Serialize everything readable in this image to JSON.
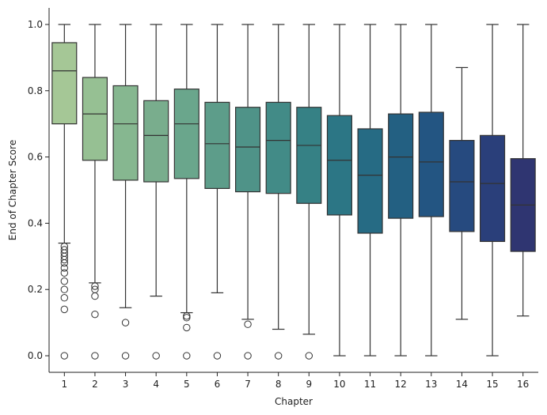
{
  "chart_data": {
    "type": "box",
    "title": "",
    "xlabel": "Chapter",
    "ylabel": "End of Chapter Score",
    "ylim": [
      -0.05,
      1.05
    ],
    "yticks": [
      0.0,
      0.2,
      0.4,
      0.6,
      0.8,
      1.0
    ],
    "ytick_labels": [
      "0.0",
      "0.2",
      "0.4",
      "0.6",
      "0.8",
      "1.0"
    ],
    "grid": false,
    "categories": [
      "1",
      "2",
      "3",
      "4",
      "5",
      "6",
      "7",
      "8",
      "9",
      "10",
      "11",
      "12",
      "13",
      "14",
      "15",
      "16"
    ],
    "colors": [
      "#a5c796",
      "#96c093",
      "#86b790",
      "#79ad8d",
      "#6aa68c",
      "#5d9d8a",
      "#4f9388",
      "#428b87",
      "#368185",
      "#2c7685",
      "#266b84",
      "#236082",
      "#235582",
      "#264a7f",
      "#2a3f7a",
      "#2f3571"
    ],
    "boxes": [
      {
        "q1": 0.7,
        "median": 0.86,
        "q3": 0.945,
        "whisker_low": 0.34,
        "whisker_high": 1.0,
        "outliers": [
          0.33,
          0.32,
          0.31,
          0.3,
          0.29,
          0.28,
          0.265,
          0.25,
          0.225,
          0.2,
          0.175,
          0.14,
          0.0
        ]
      },
      {
        "q1": 0.59,
        "median": 0.73,
        "q3": 0.84,
        "whisker_low": 0.22,
        "whisker_high": 1.0,
        "outliers": [
          0.21,
          0.2,
          0.18,
          0.125,
          0.0
        ]
      },
      {
        "q1": 0.53,
        "median": 0.7,
        "q3": 0.815,
        "whisker_low": 0.145,
        "whisker_high": 1.0,
        "outliers": [
          0.1,
          0.0
        ]
      },
      {
        "q1": 0.525,
        "median": 0.665,
        "q3": 0.77,
        "whisker_low": 0.18,
        "whisker_high": 1.0,
        "outliers": [
          0.0
        ]
      },
      {
        "q1": 0.535,
        "median": 0.7,
        "q3": 0.805,
        "whisker_low": 0.13,
        "whisker_high": 1.0,
        "outliers": [
          0.12,
          0.115,
          0.085,
          0.0
        ]
      },
      {
        "q1": 0.505,
        "median": 0.64,
        "q3": 0.765,
        "whisker_low": 0.19,
        "whisker_high": 1.0,
        "outliers": [
          0.0
        ]
      },
      {
        "q1": 0.495,
        "median": 0.63,
        "q3": 0.75,
        "whisker_low": 0.11,
        "whisker_high": 1.0,
        "outliers": [
          0.095,
          0.0
        ]
      },
      {
        "q1": 0.49,
        "median": 0.65,
        "q3": 0.765,
        "whisker_low": 0.08,
        "whisker_high": 1.0,
        "outliers": [
          0.0
        ]
      },
      {
        "q1": 0.46,
        "median": 0.635,
        "q3": 0.75,
        "whisker_low": 0.065,
        "whisker_high": 1.0,
        "outliers": [
          0.0
        ]
      },
      {
        "q1": 0.425,
        "median": 0.59,
        "q3": 0.725,
        "whisker_low": 0.0,
        "whisker_high": 1.0,
        "outliers": []
      },
      {
        "q1": 0.37,
        "median": 0.545,
        "q3": 0.685,
        "whisker_low": 0.0,
        "whisker_high": 1.0,
        "outliers": []
      },
      {
        "q1": 0.415,
        "median": 0.6,
        "q3": 0.73,
        "whisker_low": 0.0,
        "whisker_high": 1.0,
        "outliers": []
      },
      {
        "q1": 0.42,
        "median": 0.585,
        "q3": 0.735,
        "whisker_low": 0.0,
        "whisker_high": 1.0,
        "outliers": []
      },
      {
        "q1": 0.375,
        "median": 0.525,
        "q3": 0.65,
        "whisker_low": 0.11,
        "whisker_high": 0.87,
        "outliers": []
      },
      {
        "q1": 0.345,
        "median": 0.52,
        "q3": 0.665,
        "whisker_low": 0.0,
        "whisker_high": 1.0,
        "outliers": []
      },
      {
        "q1": 0.315,
        "median": 0.455,
        "q3": 0.595,
        "whisker_low": 0.12,
        "whisker_high": 1.0,
        "outliers": []
      }
    ]
  }
}
